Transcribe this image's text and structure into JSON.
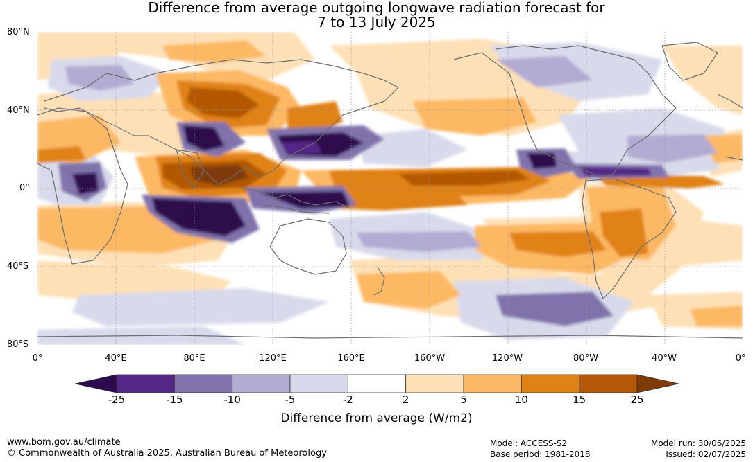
{
  "title_line1": "Difference from average outgoing longwave radiation forecast for",
  "title_line2": "7 to 13 July 2025",
  "lat_labels": [
    "80°N",
    "40°N",
    "0°",
    "40°S",
    "80°S"
  ],
  "lon_labels": [
    "0°",
    "40°E",
    "80°E",
    "120°E",
    "160°E",
    "160°W",
    "120°W",
    "80°W",
    "40°W",
    "0°"
  ],
  "colorbar": {
    "title": "Difference from average (W/m2)",
    "ticks": [
      "-25",
      "-15",
      "-10",
      "-5",
      "-2",
      "2",
      "5",
      "10",
      "15",
      "25"
    ],
    "colors": [
      "#2d0a4e",
      "#542788",
      "#8073ac",
      "#b2abd2",
      "#d8daeb",
      "#ffffff",
      "#fee0b6",
      "#fdb863",
      "#e08214",
      "#b35806",
      "#7f3b08"
    ]
  },
  "footer": {
    "url": "www.bom.gov.au/climate",
    "copyright": "© Commonwealth of Australia 2025, Australian Bureau of Meteorology",
    "model": "Model: ACCESS-S2",
    "base_period": "Base period: 1981-2018",
    "model_run": "Model run: 30/06/2025",
    "issued": "Issued: 02/07/2025"
  }
}
